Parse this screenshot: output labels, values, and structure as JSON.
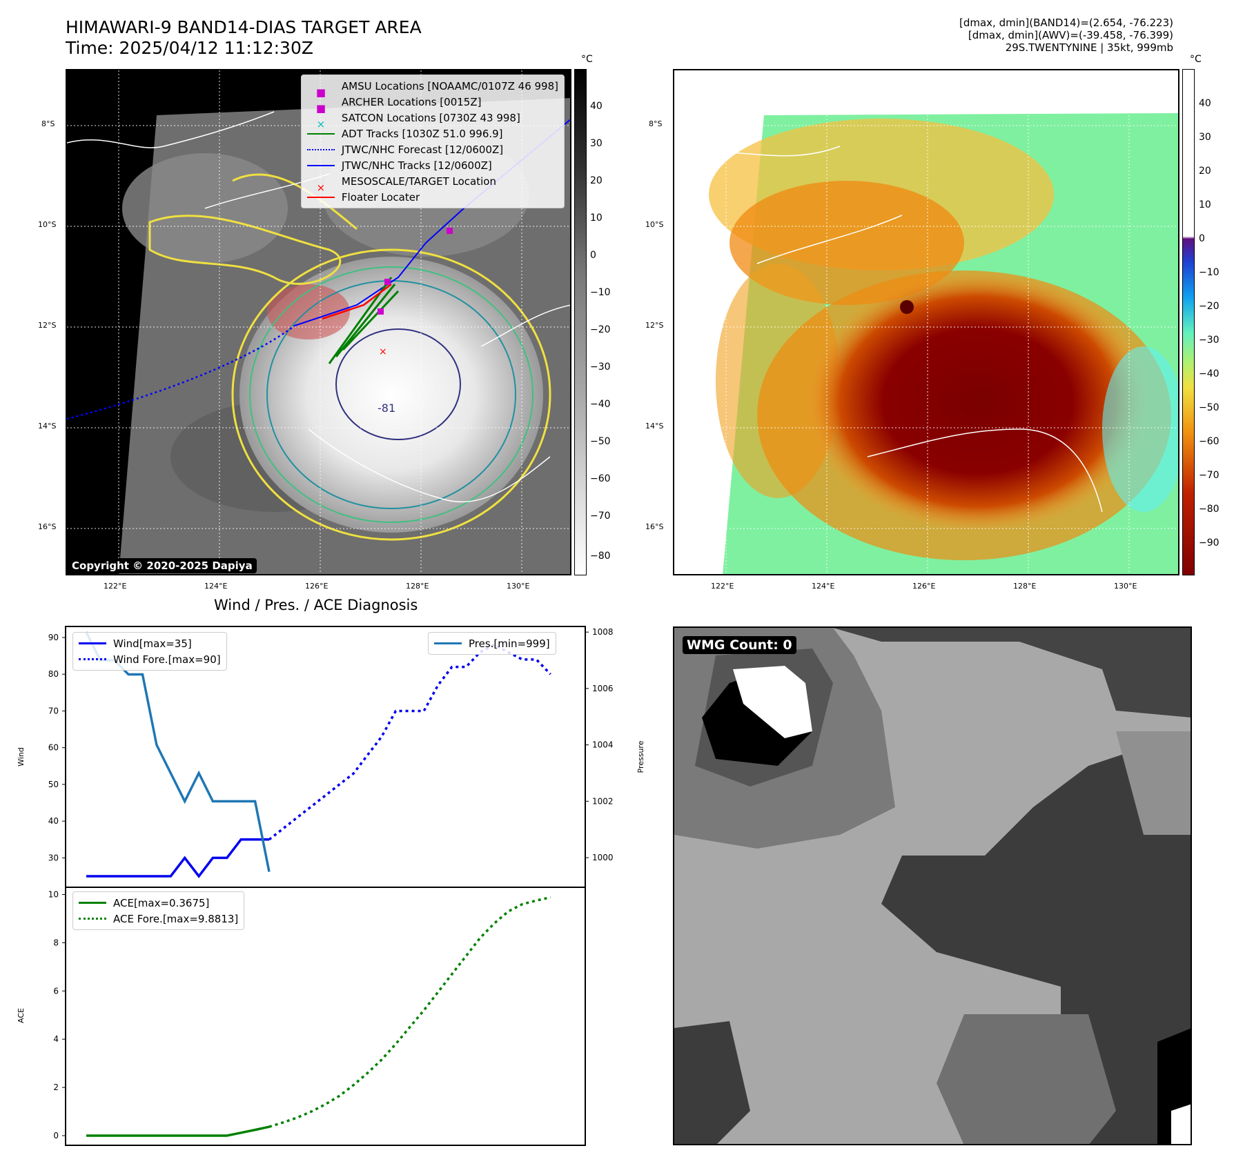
{
  "header": {
    "title_line1": "HIMAWARI-9 BAND14-DIAS TARGET AREA",
    "title_line2": "Time: 2025/04/12 11:12:30Z",
    "right_line1": "[dmax, dmin](BAND14)=(2.654, -76.223)",
    "right_line2": "[dmax, dmin](AWV)=(-39.458, -76.399)",
    "right_line3": "29S.TWENTYNINE | 35kt, 999mb"
  },
  "map": {
    "lat_labels": [
      "8°S",
      "10°S",
      "12°S",
      "14°S",
      "16°S"
    ],
    "lon_labels": [
      "122°E",
      "124°E",
      "126°E",
      "128°E",
      "130°E"
    ],
    "copyright": "Copyright © 2020-2025 Dapiya",
    "contour_label": "-81",
    "legend": [
      {
        "label": "AMSU Locations [NOAAMC/0107Z 46 998]",
        "color": "#cc00cc",
        "icon": "square-marker"
      },
      {
        "label": "ARCHER Locations [0015Z]",
        "color": "#cc00cc",
        "icon": "square-marker"
      },
      {
        "label": "SATCON Locations [0730Z 43 998]",
        "color": "#00bbbb",
        "icon": "x-marker"
      },
      {
        "label": "ADT Tracks [1030Z 51.0 996.9]",
        "color": "#008000",
        "icon": "solid-line"
      },
      {
        "label": "JTWC/NHC Forecast [12/0600Z]",
        "color": "#0000ff",
        "icon": "dotted-line"
      },
      {
        "label": "JTWC/NHC Tracks [12/0600Z]",
        "color": "#0000ff",
        "icon": "line-dot"
      },
      {
        "label": "MESOSCALE/TARGET Location",
        "color": "#ff0000",
        "icon": "x-marker"
      },
      {
        "label": "Floater Locater",
        "color": "#ff0000",
        "icon": "solid-line"
      }
    ]
  },
  "colorbar_left": {
    "unit": "°C",
    "ticks": [
      "40",
      "30",
      "20",
      "10",
      "0",
      "−10",
      "−20",
      "−30",
      "−40",
      "−50",
      "−60",
      "−70",
      "−80"
    ]
  },
  "colorbar_right": {
    "unit": "°C",
    "ticks": [
      "40",
      "30",
      "20",
      "10",
      "0",
      "−10",
      "−20",
      "−30",
      "−40",
      "−50",
      "−60",
      "−70",
      "−80",
      "−90"
    ]
  },
  "wmg": {
    "label": "WMG Count: 0"
  },
  "colors": {
    "wind": "#0000ee",
    "pres": "#1f77b4",
    "ace": "#008000"
  },
  "chart_data": [
    {
      "type": "line",
      "title": "Wind / Pres. / ACE Diagnosis",
      "ylabel": "Wind",
      "ylim": [
        22,
        93
      ],
      "yticks": [
        30,
        40,
        50,
        60,
        70,
        80,
        90
      ],
      "y2label": "Pressure",
      "y2lim": [
        998.95,
        1008.2
      ],
      "y2ticks": [
        1000,
        1002,
        1004,
        1006,
        1008
      ],
      "xlim": [
        0,
        34
      ],
      "series": [
        {
          "name": "Wind[max=35]",
          "axis": "left",
          "style": "solid",
          "x": [
            0,
            1,
            2,
            3,
            4,
            5,
            6,
            7,
            8,
            9,
            10,
            11,
            12,
            13
          ],
          "values": [
            25,
            25,
            25,
            25,
            25,
            25,
            25,
            30,
            25,
            30,
            30,
            35,
            35,
            35
          ]
        },
        {
          "name": "Wind Fore.[max=90]",
          "axis": "left",
          "style": "dotted",
          "x": [
            13,
            14,
            15,
            16,
            17,
            18,
            19,
            20,
            21,
            22,
            23,
            24,
            25,
            26,
            27,
            28,
            29,
            30,
            31,
            32,
            33
          ],
          "values": [
            35,
            38,
            41,
            44,
            47,
            50,
            53,
            58,
            63,
            70,
            70,
            70,
            77,
            82,
            82,
            86,
            88,
            86,
            84,
            84,
            80
          ]
        },
        {
          "name": "Pres.[min=999]",
          "axis": "right",
          "style": "solid",
          "x": [
            0,
            1,
            2,
            3,
            4,
            5,
            6,
            7,
            8,
            9,
            10,
            11,
            12,
            13
          ],
          "values": [
            1008,
            1007,
            1007,
            1006.5,
            1006.5,
            1004,
            1003,
            1002,
            1003,
            1002,
            1002,
            1002,
            1002,
            999.5
          ]
        }
      ]
    },
    {
      "type": "line",
      "ylabel": "ACE",
      "ylim": [
        -0.4,
        10.3
      ],
      "yticks": [
        0,
        2,
        4,
        6,
        8,
        10
      ],
      "xlim": [
        0,
        34
      ],
      "series": [
        {
          "name": "ACE[max=0.3675]",
          "style": "solid",
          "x": [
            0,
            1,
            2,
            3,
            4,
            5,
            6,
            7,
            8,
            9,
            10,
            11,
            12,
            13
          ],
          "values": [
            0,
            0,
            0,
            0,
            0,
            0,
            0,
            0,
            0,
            0,
            0,
            0.12,
            0.24,
            0.3675
          ]
        },
        {
          "name": "ACE Fore.[max=9.8813]",
          "style": "dotted",
          "x": [
            13,
            14,
            15,
            16,
            17,
            18,
            19,
            20,
            21,
            22,
            23,
            24,
            25,
            26,
            27,
            28,
            29,
            30,
            31,
            32,
            33
          ],
          "values": [
            0.3675,
            0.55,
            0.75,
            1.0,
            1.3,
            1.65,
            2.1,
            2.6,
            3.15,
            3.8,
            4.5,
            5.2,
            5.95,
            6.7,
            7.45,
            8.2,
            8.8,
            9.3,
            9.6,
            9.75,
            9.8813
          ]
        }
      ]
    }
  ]
}
